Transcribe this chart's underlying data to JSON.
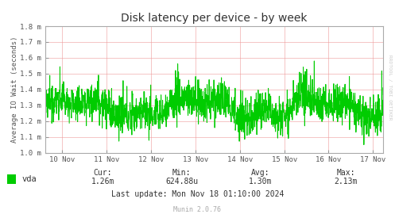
{
  "title": "Disk latency per device - by week",
  "ylabel": "Average IO Wait (seconds)",
  "bg_color": "#FFFFFF",
  "grid_color": "#EE9999",
  "line_color": "#00CC00",
  "x_labels": [
    "10 Nov",
    "11 Nov",
    "12 Nov",
    "13 Nov",
    "14 Nov",
    "15 Nov",
    "16 Nov",
    "17 Nov"
  ],
  "y_min": 0.001,
  "y_max": 0.0018,
  "y_ticks": [
    0.001,
    0.0011,
    0.0012,
    0.0013,
    0.0014,
    0.0015,
    0.0016,
    0.0017,
    0.0018
  ],
  "y_tick_labels": [
    "1.0 m",
    "1.1 m",
    "1.2 m",
    "1.3 m",
    "1.4 m",
    "1.5 m",
    "1.6 m",
    "1.7 m",
    "1.8 m"
  ],
  "legend_label": "vda",
  "legend_color": "#00CC00",
  "cur_val": "1.26m",
  "min_val": "624.88u",
  "avg_val": "1.30m",
  "max_val": "2.13m",
  "last_update": "Last update: Mon Nov 18 01:10:00 2024",
  "munin_version": "Munin 2.0.76",
  "rrdtool_label": "RRDTOOL / TOBI OETIKER",
  "n_points": 1700,
  "seed": 12345
}
